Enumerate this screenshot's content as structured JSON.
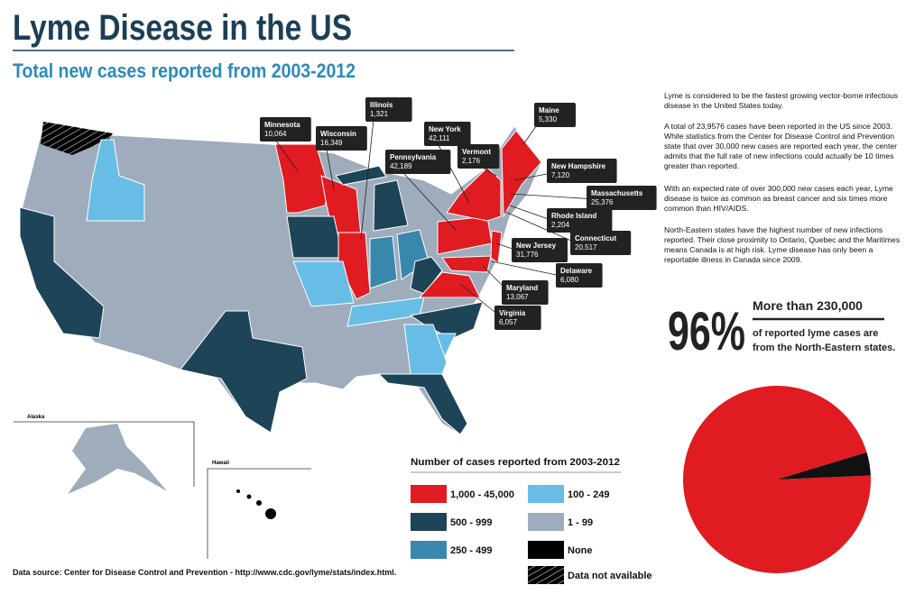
{
  "header": {
    "title": "Lyme Disease in the US",
    "subtitle": "Total new cases reported from 2003-2012"
  },
  "map": {
    "callouts": [
      {
        "state": "Minnesota",
        "cases": "10,064"
      },
      {
        "state": "Wisconsin",
        "cases": "16,349"
      },
      {
        "state": "Illinois",
        "cases": "1,321"
      },
      {
        "state": "Pennsylvania",
        "cases": "42,189"
      },
      {
        "state": "New York",
        "cases": "42,111"
      },
      {
        "state": "Vermont",
        "cases": "2,176"
      },
      {
        "state": "Maine",
        "cases": "5,330"
      },
      {
        "state": "New Hampshire",
        "cases": "7,120"
      },
      {
        "state": "Massachusetts",
        "cases": "25,376"
      },
      {
        "state": "Rhode Island",
        "cases": "2,204"
      },
      {
        "state": "Connecticut",
        "cases": "20,517"
      },
      {
        "state": "New Jersey",
        "cases": "31,776"
      },
      {
        "state": "Delaware",
        "cases": "6,080"
      },
      {
        "state": "Maryland",
        "cases": "13,067"
      },
      {
        "state": "Virginia",
        "cases": "6,057"
      }
    ],
    "insets": [
      "Alaska",
      "Hawaii"
    ]
  },
  "legend": {
    "title": "Number of cases reported from 2003-2012",
    "items": [
      "1,000 - 45,000",
      "500 - 999",
      "250 - 499",
      "100 - 249",
      "1 - 99",
      "None",
      "Data not available"
    ]
  },
  "paragraphs": [
    "Lyme is considered to be the fastest growing vector-borne infectious disease in the United States today.",
    "A total of 23,9576 cases have been reported in the US since 2003. While statistics from the Center for Disease Control and Prevention state that over 30,000 new cases are reported each year, the center admits that the full rate of new infections could actually be 10 times greater than reported.",
    "With an expected rate of over 300,000 new cases each year, Lyme disease is twice as common as breast cancer and six times more common than HIV/AIDS.",
    "North-Eastern states have the highest number of new infections reported. Their close proximity to Ontario, Quebec and the Maritimes means Canada is at high risk. Lyme disease has only been a reportable illness in Canada since 2009."
  ],
  "highlight": {
    "stat": "96%",
    "headline": "More than 230,000",
    "lines": [
      "of reported lyme cases are",
      "from the North-Eastern states."
    ]
  },
  "chart_data": {
    "type": "pie",
    "values": [
      96,
      4
    ],
    "colors": [
      "#e01b22",
      "#111111"
    ]
  },
  "source": "Data source: Center for Disease Control and Prevention - http://www.cdc.gov/lyme/stats/index.html."
}
